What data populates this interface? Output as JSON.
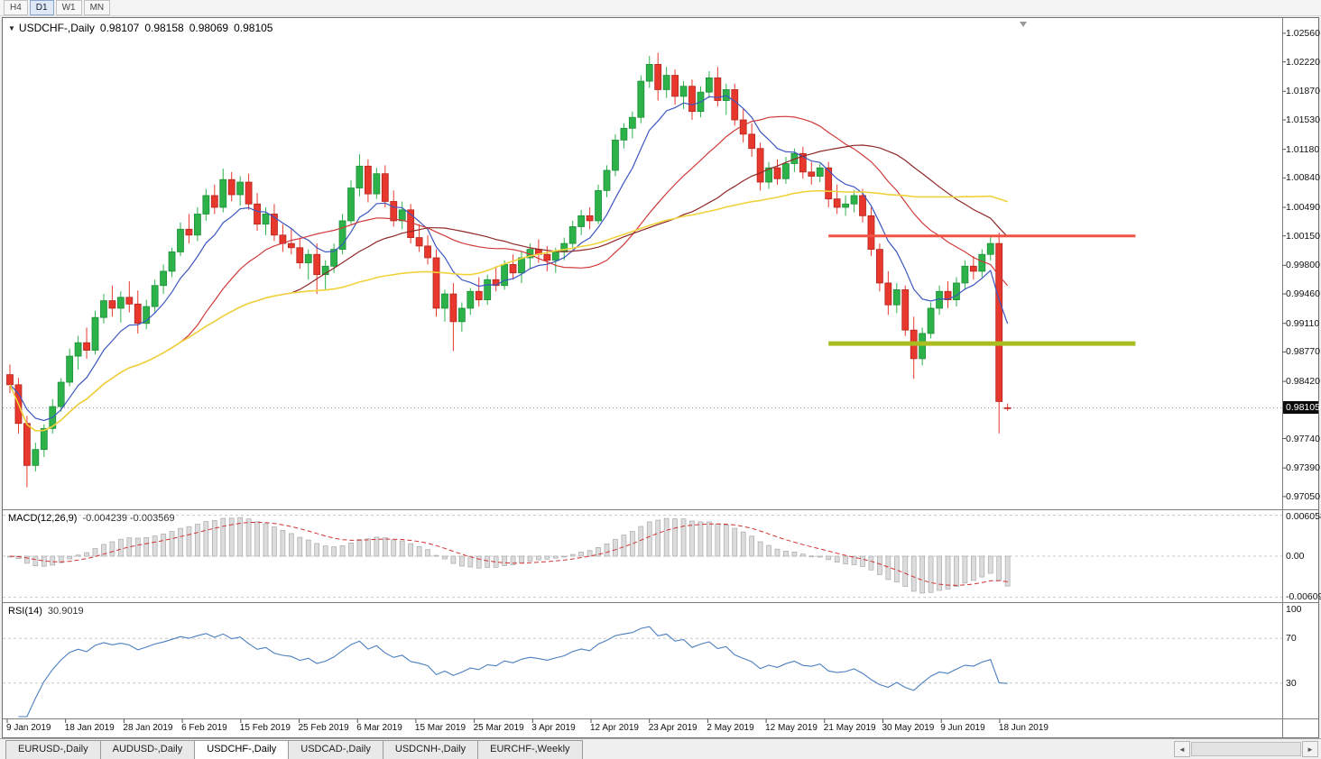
{
  "icons": {
    "dropdown": "▼",
    "tab_scroll_left": "◄",
    "tab_scroll_right": "►"
  },
  "toolbar": {
    "timeframes": [
      {
        "label": "H4",
        "active": false
      },
      {
        "label": "D1",
        "active": true
      },
      {
        "label": "W1",
        "active": false
      },
      {
        "label": "MN",
        "active": false
      }
    ]
  },
  "chart": {
    "title": {
      "symbol": "USDCHF-,Daily",
      "open": "0.98107",
      "high": "0.98158",
      "low": "0.98069",
      "close": "0.98105"
    },
    "current_price": "0.98105",
    "price_labels": [
      "1.02560",
      "1.02220",
      "1.01870",
      "1.01530",
      "1.01180",
      "1.00840",
      "1.00490",
      "1.00150",
      "0.99800",
      "0.99460",
      "0.99110",
      "0.98770",
      "0.98420",
      "0.97740",
      "0.97390",
      "0.97050"
    ]
  },
  "chart_data": {
    "type": "candlestick",
    "symbol": "USDCHF-",
    "timeframe": "Daily",
    "y_range": [
      0.9692,
      1.0272
    ],
    "current_price": 0.98105,
    "x_labels": [
      "9 Jan 2019",
      "18 Jan 2019",
      "28 Jan 2019",
      "6 Feb 2019",
      "15 Feb 2019",
      "25 Feb 2019",
      "6 Mar 2019",
      "15 Mar 2019",
      "25 Mar 2019",
      "3 Apr 2019",
      "12 Apr 2019",
      "23 Apr 2019",
      "2 May 2019",
      "12 May 2019",
      "21 May 2019",
      "30 May 2019",
      "9 Jun 2019",
      "18 Jun 2019"
    ],
    "candles": [
      [
        0.985,
        0.9862,
        0.9828,
        0.9838
      ],
      [
        0.9838,
        0.9846,
        0.978,
        0.9792
      ],
      [
        0.9792,
        0.9801,
        0.9716,
        0.9742
      ],
      [
        0.9742,
        0.9769,
        0.9735,
        0.9761
      ],
      [
        0.9761,
        0.9791,
        0.9752,
        0.9786
      ],
      [
        0.9786,
        0.9821,
        0.978,
        0.9812
      ],
      [
        0.9812,
        0.9846,
        0.9806,
        0.9841
      ],
      [
        0.9841,
        0.9881,
        0.9836,
        0.9872
      ],
      [
        0.9872,
        0.9896,
        0.9856,
        0.9888
      ],
      [
        0.9888,
        0.9906,
        0.9869,
        0.9879
      ],
      [
        0.9879,
        0.9926,
        0.9874,
        0.9918
      ],
      [
        0.9918,
        0.9946,
        0.9911,
        0.9938
      ],
      [
        0.9938,
        0.9956,
        0.9919,
        0.9929
      ],
      [
        0.9929,
        0.9949,
        0.9912,
        0.9942
      ],
      [
        0.9942,
        0.9961,
        0.9924,
        0.9934
      ],
      [
        0.9934,
        0.995,
        0.9899,
        0.9911
      ],
      [
        0.9911,
        0.9939,
        0.9904,
        0.9931
      ],
      [
        0.9931,
        0.9963,
        0.9923,
        0.9956
      ],
      [
        0.9956,
        0.9981,
        0.9946,
        0.9973
      ],
      [
        0.9973,
        1.0001,
        0.9966,
        0.9996
      ],
      [
        0.9996,
        1.0031,
        0.9991,
        1.0023
      ],
      [
        1.0023,
        1.0041,
        1.0006,
        1.0016
      ],
      [
        1.0016,
        1.0049,
        1.0009,
        1.0041
      ],
      [
        1.0041,
        1.0071,
        1.0033,
        1.0063
      ],
      [
        1.0063,
        1.0076,
        1.0041,
        1.0049
      ],
      [
        1.0049,
        1.0095,
        1.0043,
        1.0082
      ],
      [
        1.0082,
        1.0091,
        1.0056,
        1.0064
      ],
      [
        1.0064,
        1.0086,
        1.0051,
        1.0079
      ],
      [
        1.0079,
        1.0089,
        1.0046,
        1.0053
      ],
      [
        1.0053,
        1.0066,
        1.0021,
        1.0029
      ],
      [
        1.0029,
        1.0049,
        1.0016,
        1.0041
      ],
      [
        1.0041,
        1.0053,
        1.0009,
        1.0016
      ],
      [
        1.0016,
        1.0029,
        0.9996,
        1.0006
      ],
      [
        1.0006,
        1.0023,
        0.9993,
        1.0001
      ],
      [
        1.0001,
        1.0013,
        0.9976,
        0.9983
      ],
      [
        0.9983,
        0.9999,
        0.9963,
        0.9993
      ],
      [
        0.9993,
        1.0006,
        0.9946,
        0.9969
      ],
      [
        0.9969,
        0.9986,
        0.9951,
        0.9979
      ],
      [
        0.9979,
        1.0006,
        0.9971,
        0.9999
      ],
      [
        0.9999,
        1.0041,
        0.9993,
        1.0033
      ],
      [
        1.0033,
        1.0081,
        1.0029,
        1.0072
      ],
      [
        1.0072,
        1.0112,
        1.0062,
        1.0098
      ],
      [
        1.0098,
        1.0106,
        1.0055,
        1.0065
      ],
      [
        1.0065,
        1.0096,
        1.0059,
        1.0089
      ],
      [
        1.0089,
        1.0099,
        1.0049,
        1.0056
      ],
      [
        1.0056,
        1.0069,
        1.0026,
        1.0033
      ],
      [
        1.0033,
        1.0056,
        1.0023,
        1.0046
      ],
      [
        1.0046,
        1.0053,
        1.0006,
        1.0013
      ],
      [
        1.0013,
        1.0029,
        0.9996,
        1.0003
      ],
      [
        1.0003,
        1.0016,
        0.9981,
        0.9989
      ],
      [
        0.9989,
        0.9999,
        0.9919,
        0.9929
      ],
      [
        0.9929,
        0.9951,
        0.9913,
        0.9946
      ],
      [
        0.9946,
        0.9959,
        0.9878,
        0.9913
      ],
      [
        0.9913,
        0.9936,
        0.9901,
        0.9929
      ],
      [
        0.9929,
        0.9953,
        0.9921,
        0.9949
      ],
      [
        0.9949,
        0.9966,
        0.9931,
        0.9939
      ],
      [
        0.9939,
        0.9969,
        0.9933,
        0.9963
      ],
      [
        0.9963,
        0.9979,
        0.9949,
        0.9956
      ],
      [
        0.9956,
        0.9986,
        0.9951,
        0.9981
      ],
      [
        0.9981,
        0.9993,
        0.9963,
        0.9971
      ],
      [
        0.9971,
        0.9996,
        0.9959,
        0.9989
      ],
      [
        0.9989,
        1.0006,
        0.9976,
        0.9999
      ],
      [
        0.9999,
        1.0011,
        0.9983,
        0.9993
      ],
      [
        0.9993,
        1.0003,
        0.9973,
        0.9986
      ],
      [
        0.9986,
        1.0001,
        0.9971,
        0.9996
      ],
      [
        0.9996,
        1.0013,
        0.9986,
        1.0006
      ],
      [
        1.0006,
        1.0033,
        0.9999,
        1.0026
      ],
      [
        1.0026,
        1.0046,
        1.0016,
        1.0039
      ],
      [
        1.0039,
        1.0049,
        1.0023,
        1.0033
      ],
      [
        1.0033,
        1.0076,
        1.0029,
        1.0069
      ],
      [
        1.0069,
        1.0099,
        1.0061,
        1.0093
      ],
      [
        1.0093,
        1.0136,
        1.0086,
        1.0129
      ],
      [
        1.0129,
        1.0149,
        1.0119,
        1.0143
      ],
      [
        1.0143,
        1.0163,
        1.0131,
        1.0156
      ],
      [
        1.0156,
        1.0206,
        1.0149,
        1.0199
      ],
      [
        1.0199,
        1.0229,
        1.0191,
        1.0219
      ],
      [
        1.0219,
        1.0233,
        1.0176,
        1.0189
      ],
      [
        1.0189,
        1.0216,
        1.0179,
        1.0206
      ],
      [
        1.0206,
        1.0213,
        1.0171,
        1.0181
      ],
      [
        1.0181,
        1.0199,
        1.0166,
        1.0193
      ],
      [
        1.0193,
        1.0201,
        1.0153,
        1.0163
      ],
      [
        1.0163,
        1.0193,
        1.0156,
        1.0186
      ],
      [
        1.0186,
        1.0211,
        1.0179,
        1.0203
      ],
      [
        1.0203,
        1.0216,
        1.0169,
        1.0176
      ],
      [
        1.0176,
        1.0196,
        1.0159,
        1.0189
      ],
      [
        1.0189,
        1.0196,
        1.0146,
        1.0153
      ],
      [
        1.0153,
        1.0166,
        1.0126,
        1.0136
      ],
      [
        1.0136,
        1.0149,
        1.0109,
        1.0119
      ],
      [
        1.0119,
        1.0126,
        1.0069,
        1.0079
      ],
      [
        1.0079,
        1.0103,
        1.0071,
        1.0096
      ],
      [
        1.0096,
        1.0106,
        1.0076,
        1.0083
      ],
      [
        1.0083,
        1.0109,
        1.0077,
        1.0101
      ],
      [
        1.0101,
        1.0119,
        1.0091,
        1.0113
      ],
      [
        1.0113,
        1.0121,
        1.0083,
        1.0091
      ],
      [
        1.0091,
        1.0103,
        1.0076,
        1.0086
      ],
      [
        1.0086,
        1.0101,
        1.0079,
        1.0096
      ],
      [
        1.0096,
        1.0103,
        1.0049,
        1.0059
      ],
      [
        1.0059,
        1.0076,
        1.0041,
        1.0049
      ],
      [
        1.0049,
        1.0063,
        1.0039,
        1.0053
      ],
      [
        1.0053,
        1.0069,
        1.0043,
        1.0063
      ],
      [
        1.0063,
        1.0071,
        1.0031,
        1.0039
      ],
      [
        1.0039,
        1.0049,
        0.9991,
        0.9999
      ],
      [
        0.9999,
        1.0006,
        0.9949,
        0.9959
      ],
      [
        0.9959,
        0.9973,
        0.9921,
        0.9933
      ],
      [
        0.9933,
        0.9959,
        0.9923,
        0.9951
      ],
      [
        0.9951,
        0.9956,
        0.9896,
        0.9903
      ],
      [
        0.9903,
        0.9919,
        0.9845,
        0.9869
      ],
      [
        0.9869,
        0.9906,
        0.9861,
        0.9899
      ],
      [
        0.9899,
        0.9936,
        0.9893,
        0.9929
      ],
      [
        0.9929,
        0.9956,
        0.9921,
        0.9949
      ],
      [
        0.9949,
        0.9961,
        0.9929,
        0.9939
      ],
      [
        0.9939,
        0.9966,
        0.9931,
        0.9959
      ],
      [
        0.9959,
        0.9986,
        0.9951,
        0.9979
      ],
      [
        0.9979,
        0.9991,
        0.9963,
        0.9973
      ],
      [
        0.9973,
        0.9999,
        0.9966,
        0.9993
      ],
      [
        0.9993,
        1.0014,
        0.9986,
        1.0006
      ],
      [
        1.0006,
        1.0019,
        0.978,
        0.9818
      ],
      [
        0.98107,
        0.98158,
        0.98069,
        0.98105
      ]
    ],
    "style": {
      "up_color": "#2db24a",
      "up_border": "#1d8f39",
      "down_color": "#e8382d",
      "down_border": "#b3251c",
      "grid_color": "#c8c8c8"
    },
    "moving_averages": [
      {
        "name": "fast-blue",
        "method": "ema",
        "period": 8,
        "color": "#3c56c0",
        "width": 1.2
      },
      {
        "name": "mid-red",
        "method": "sma",
        "period": 21,
        "color": "#d03a3a",
        "width": 1.2
      },
      {
        "name": "mid-darkred",
        "method": "sma",
        "period": 34,
        "color": "#8f2727",
        "width": 1.2
      },
      {
        "name": "slow-yellow",
        "method": "sma",
        "period": 55,
        "color": "#f0d33c",
        "width": 1.6
      }
    ],
    "hlines": [
      {
        "name": "resistance-line",
        "price": 1.0015,
        "color": "#f25244",
        "width": 3,
        "from_index": 96,
        "to_index": 132
      },
      {
        "name": "support-line",
        "price": 0.9887,
        "color": "#a9bd20",
        "width": 5,
        "from_index": 96,
        "to_index": 132
      }
    ],
    "indicators": [
      {
        "name": "macd",
        "label": "MACD(12,26,9)",
        "values_text": "-0.004239 -0.003569",
        "fast": 12,
        "slow": 26,
        "signal": 9,
        "axis_labels": [
          "0.006058",
          "0.00",
          "-0.006096"
        ],
        "axis_levels": [
          0.006058,
          0,
          -0.006096
        ],
        "histogram_fill": "#dcdcdc",
        "histogram_stroke": "#a9a9a9",
        "signal_color": "#d23333"
      },
      {
        "name": "rsi",
        "label": "RSI(14)",
        "value_text": "30.9019",
        "period": 14,
        "axis_labels": [
          "100",
          "70",
          "30"
        ],
        "axis_levels": [
          100,
          70,
          30
        ],
        "levels": [
          70,
          30
        ],
        "line_color": "#4a7fbf"
      }
    ]
  },
  "tabs": {
    "items": [
      {
        "label": "EURUSD-,Daily",
        "active": false
      },
      {
        "label": "AUDUSD-,Daily",
        "active": false
      },
      {
        "label": "USDCHF-,Daily",
        "active": true
      },
      {
        "label": "USDCAD-,Daily",
        "active": false
      },
      {
        "label": "USDCNH-,Daily",
        "active": false
      },
      {
        "label": "EURCHF-,Weekly",
        "active": false
      }
    ]
  }
}
